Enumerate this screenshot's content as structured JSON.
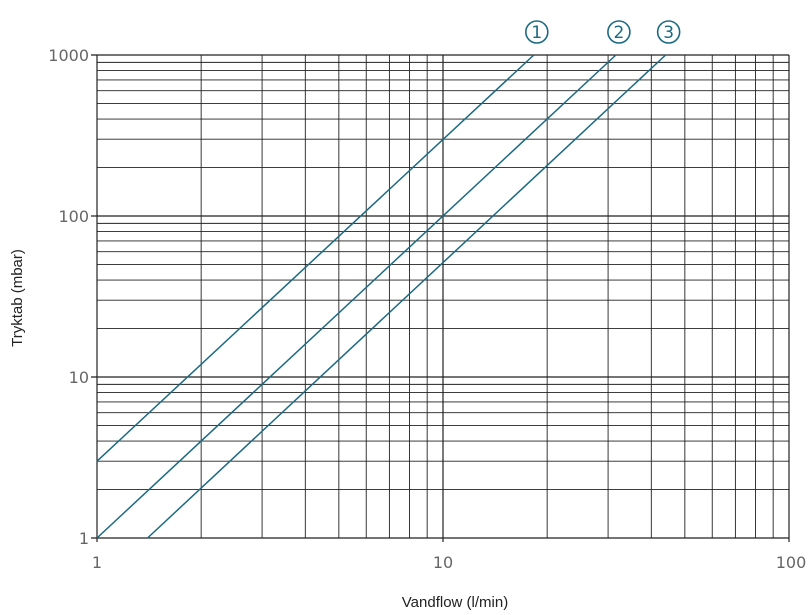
{
  "chart_data": {
    "type": "line",
    "x_scale": "log",
    "y_scale": "log",
    "xlim": [
      1,
      100
    ],
    "ylim": [
      1,
      1000
    ],
    "grid": true,
    "xlabel": "Vandflow (l/min)",
    "ylabel": "Tryktab (mbar)",
    "x_ticks": [
      "1",
      "10",
      "100"
    ],
    "y_ticks": [
      "1",
      "10",
      "100",
      "1000"
    ],
    "series": [
      {
        "name": "1",
        "x": [
          1,
          18.3
        ],
        "y": [
          3,
          1000
        ]
      },
      {
        "name": "2",
        "x": [
          1,
          31.6
        ],
        "y": [
          1,
          1000
        ]
      },
      {
        "name": "3",
        "x": [
          1.4,
          44
        ],
        "y": [
          1,
          1000
        ]
      }
    ],
    "line_color": "#1b6a82",
    "grid_color": "#222222"
  }
}
